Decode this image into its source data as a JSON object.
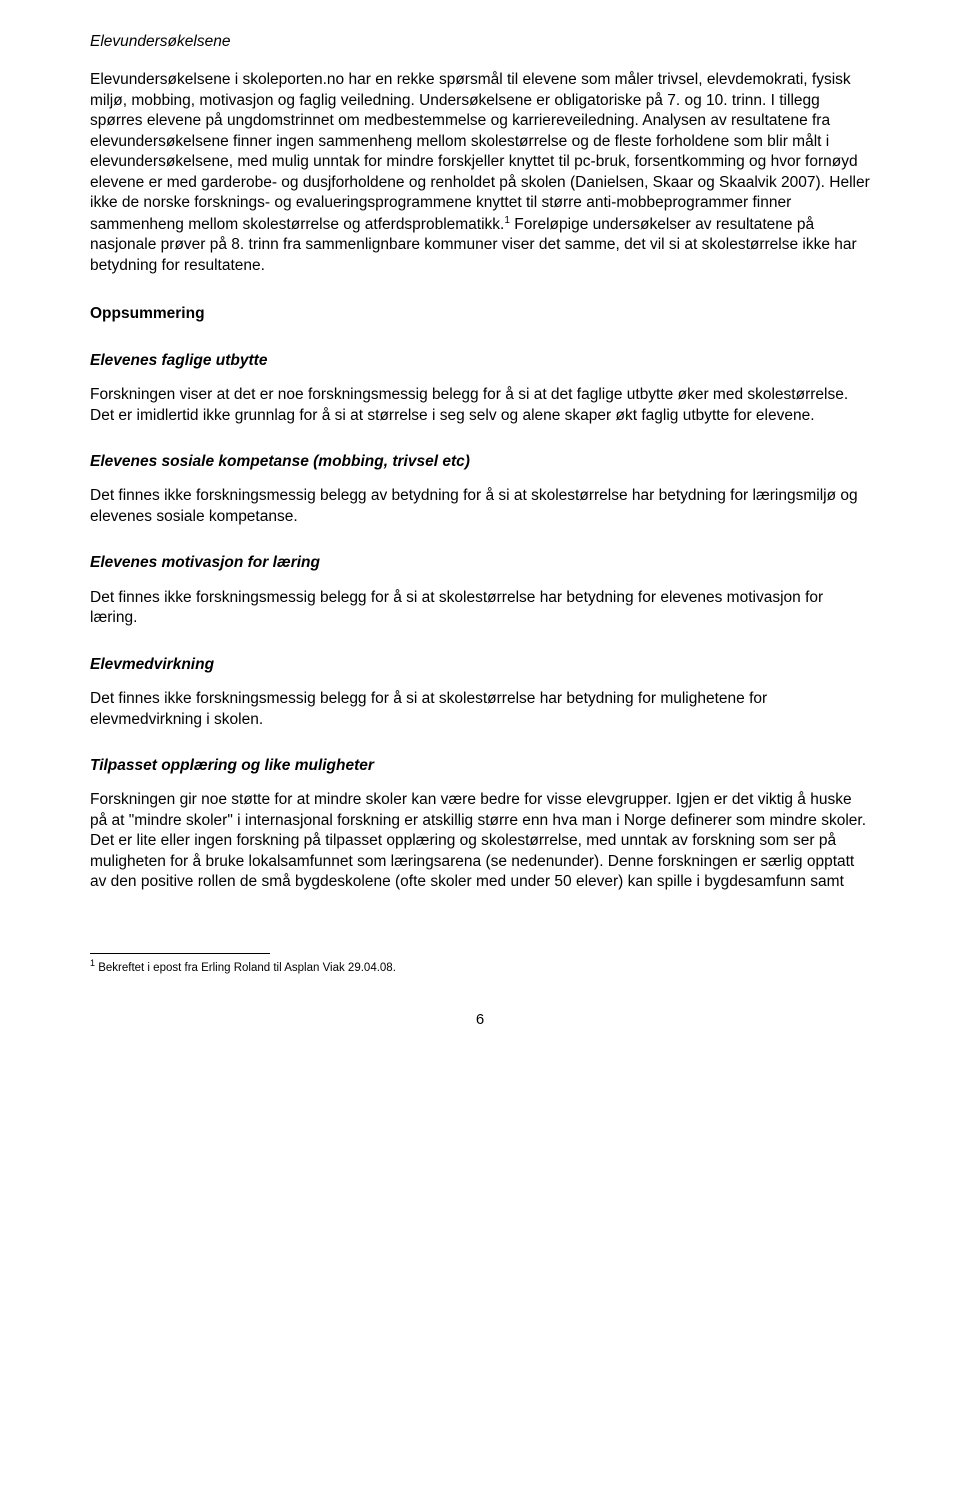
{
  "section1": {
    "heading": "Elevundersøkelsene",
    "para": "Elevundersøkelsene i skoleporten.no har en rekke spørsmål til elevene som måler trivsel, elevdemokrati, fysisk miljø, mobbing, motivasjon og faglig veiledning. Undersøkelsene er obligatoriske på 7. og 10. trinn. I tillegg spørres elevene på ungdomstrinnet om medbestemmelse og karriereveiledning. Analysen av resultatene fra elevundersøkelsene finner ingen sammenheng mellom skolestørrelse og de fleste forholdene som blir målt i elevundersøkelsene, med mulig unntak for mindre forskjeller knyttet til pc-bruk, forsentkomming og hvor fornøyd elevene er med garderobe- og dusjforholdene og renholdet på skolen (Danielsen, Skaar og Skaalvik 2007). Heller ikke de norske forsknings- og evalueringsprogrammene knyttet til større anti-mobbeprogrammer finner sammenheng mellom skolestørrelse og atferdsproblematikk.",
    "para_after_sup": " Foreløpige undersøkelser av resultatene på nasjonale prøver på 8. trinn fra sammenlignbare kommuner viser det samme, det vil si at skolestørrelse ikke har betydning for resultatene."
  },
  "section2": {
    "heading": "Oppsummering"
  },
  "sub1": {
    "heading": "Elevenes faglige utbytte",
    "para": "Forskningen viser at det er noe forskningsmessig belegg for å si at det faglige utbytte øker med skolestørrelse. Det er imidlertid ikke grunnlag for å si at størrelse i seg selv og alene skaper økt faglig utbytte for elevene."
  },
  "sub2": {
    "heading": "Elevenes sosiale kompetanse (mobbing, trivsel etc)",
    "para": "Det finnes ikke forskningsmessig belegg av betydning for å si at skolestørrelse har betydning for læringsmiljø og elevenes sosiale kompetanse."
  },
  "sub3": {
    "heading": "Elevenes motivasjon for læring",
    "para": "Det finnes ikke forskningsmessig belegg for å si at skolestørrelse har betydning for elevenes motivasjon for læring."
  },
  "sub4": {
    "heading": "Elevmedvirkning",
    "para": "Det finnes ikke forskningsmessig belegg for å si at skolestørrelse har betydning for mulighetene for elevmedvirkning i skolen."
  },
  "sub5": {
    "heading": "Tilpasset opplæring og like muligheter",
    "para": "Forskningen gir noe støtte for at mindre skoler kan være bedre for visse elevgrupper. Igjen er det viktig å huske på at \"mindre skoler\" i internasjonal forskning er atskillig større enn hva man i Norge definerer som mindre skoler. Det er lite eller ingen forskning på tilpasset opplæring og skolestørrelse, med unntak av forskning som ser på muligheten for å bruke lokalsamfunnet som læringsarena (se nedenunder). Denne forskningen er særlig opptatt av den positive rollen de små bygdeskolene (ofte skoler med under 50 elever) kan spille i bygdesamfunn samt"
  },
  "footnote": {
    "marker": "1",
    "text": " Bekreftet i epost fra Erling Roland til Asplan Viak 29.04.08."
  },
  "pagenum": "6"
}
